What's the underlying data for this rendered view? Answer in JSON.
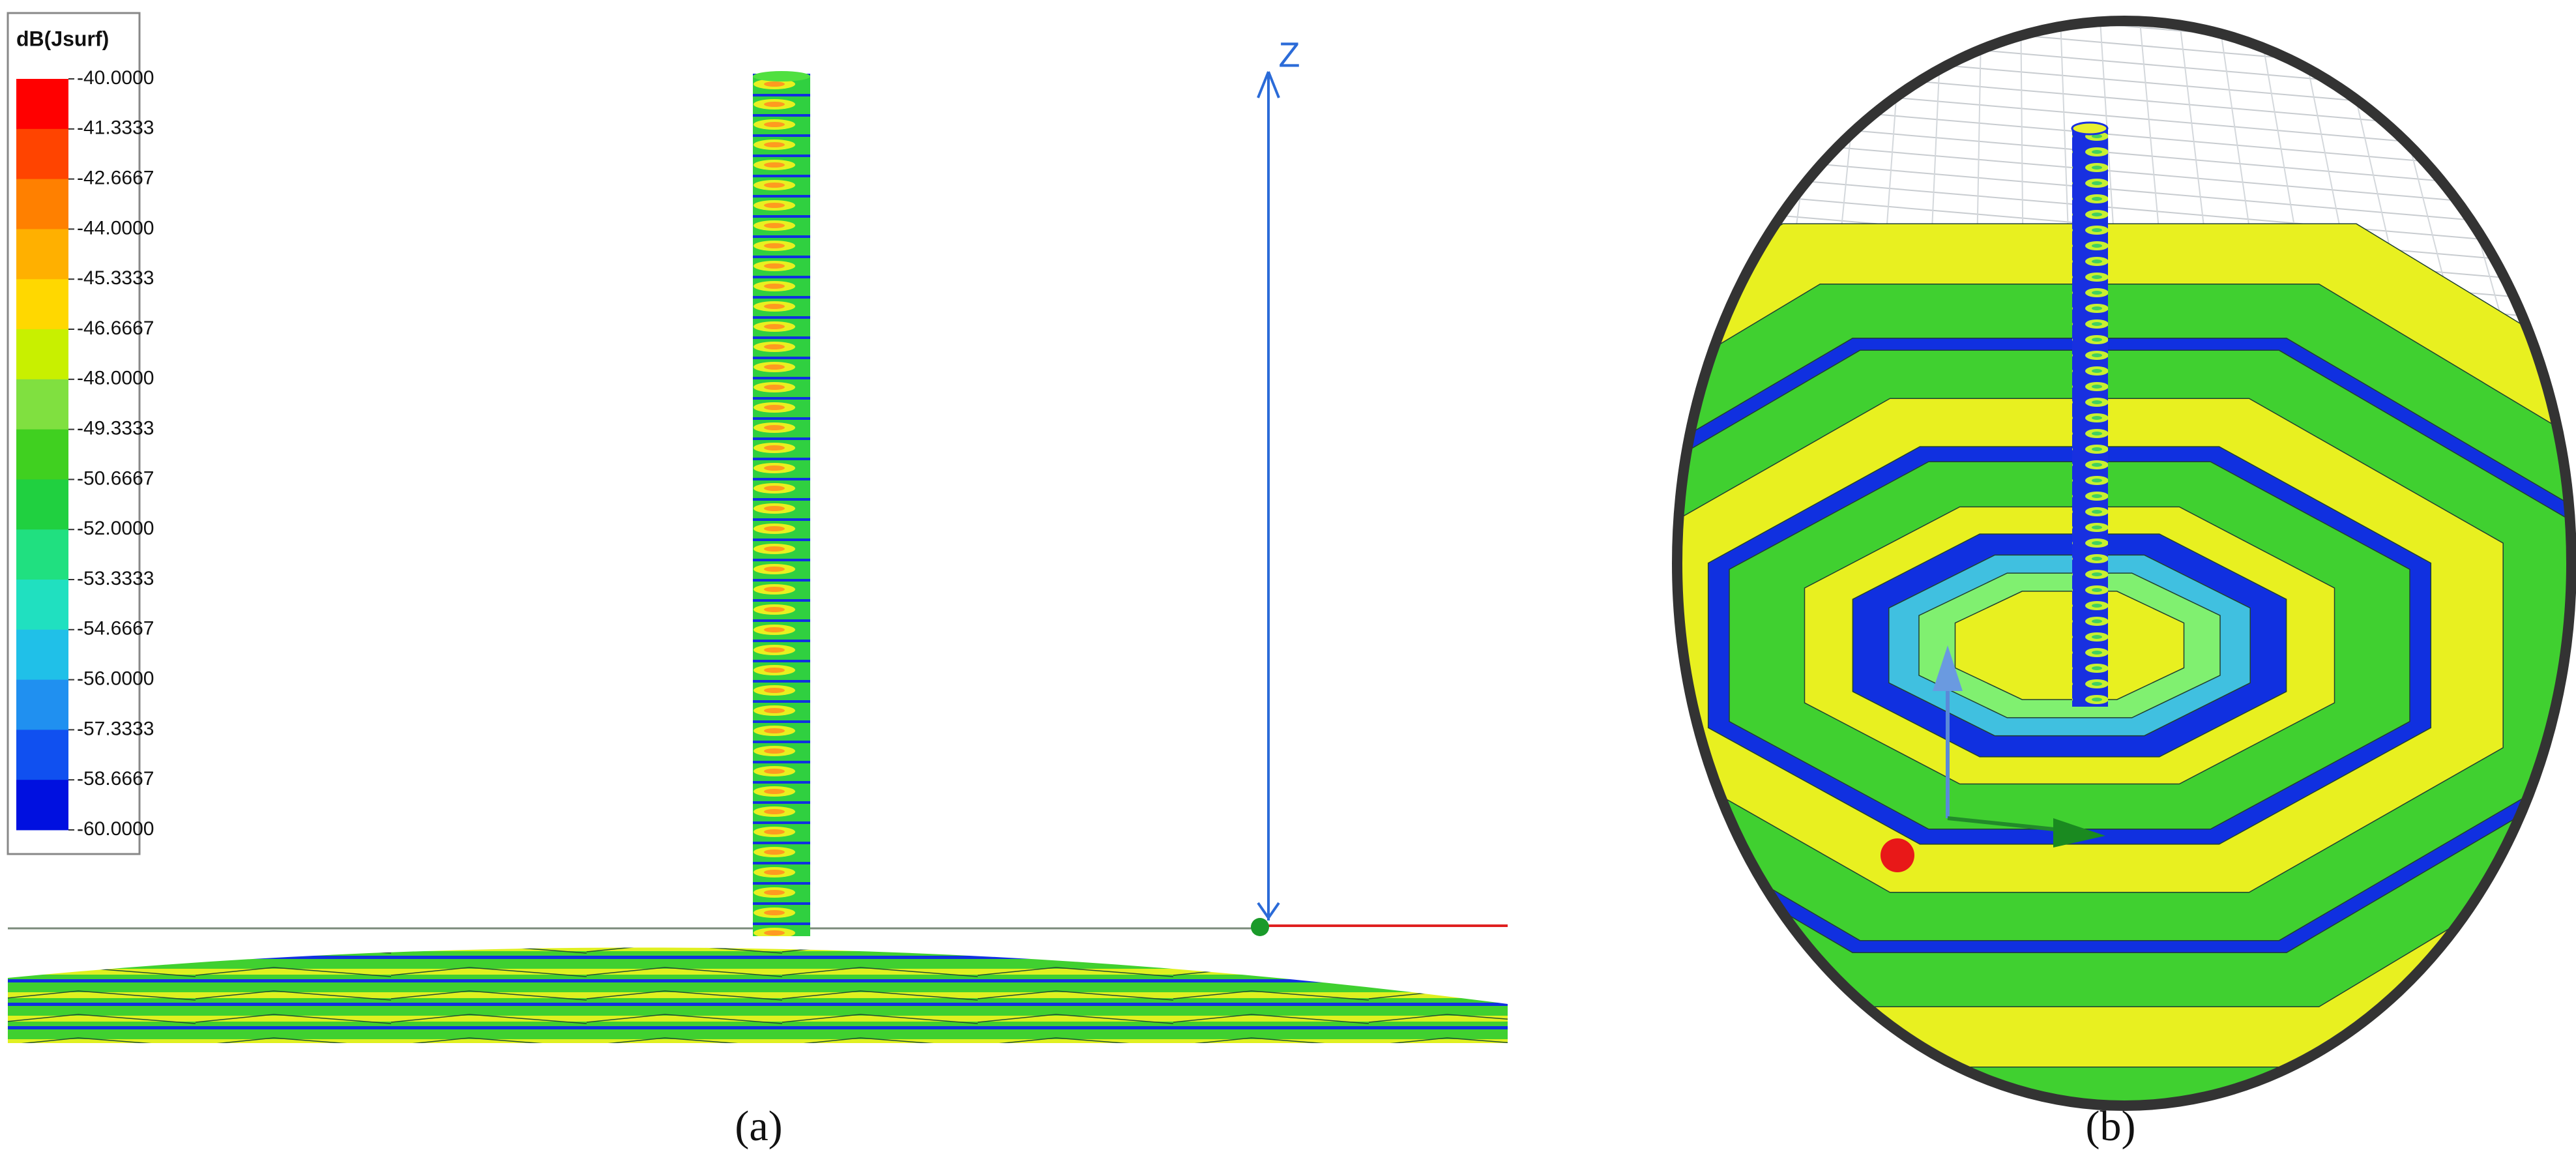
{
  "legend": {
    "title": "dB(Jsurf)",
    "labels": [
      "-40.0000",
      "-41.3333",
      "-42.6667",
      "-44.0000",
      "-45.3333",
      "-46.6667",
      "-48.0000",
      "-49.3333",
      "-50.6667",
      "-52.0000",
      "-53.3333",
      "-54.6667",
      "-56.0000",
      "-57.3333",
      "-58.6667",
      "-60.0000"
    ],
    "colors": [
      "#ff0000",
      "#ff4400",
      "#ff8000",
      "#ffb000",
      "#ffd800",
      "#c8f000",
      "#80e040",
      "#40d020",
      "#20d040",
      "#20e080",
      "#20e0c0",
      "#20c0e8",
      "#2090f0",
      "#1050f0",
      "#0010e0"
    ]
  },
  "panel_a": {
    "axis_label": "Z",
    "caption": "(a)"
  },
  "panel_b": {
    "caption": "(b)"
  }
}
